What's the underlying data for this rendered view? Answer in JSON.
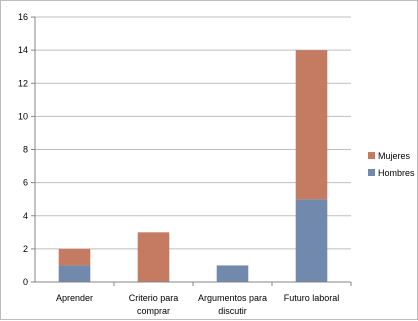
{
  "chart_data": {
    "type": "bar",
    "stacked": true,
    "categories": [
      [
        "Aprender"
      ],
      [
        "Criterio para",
        "comprar"
      ],
      [
        "Argumentos para",
        "discutir"
      ],
      [
        "Futuro laboral"
      ]
    ],
    "series": [
      {
        "name": "Hombres",
        "values": [
          1,
          0,
          1,
          5
        ],
        "color": "#7189ad"
      },
      {
        "name": "Mujeres",
        "values": [
          1,
          3,
          0,
          9
        ],
        "color": "#c57b61"
      }
    ],
    "ylim": [
      0,
      16
    ],
    "yticks": [
      "0",
      "2",
      "4",
      "6",
      "8",
      "10",
      "12",
      "14",
      "16"
    ],
    "grid": true,
    "legend_position": "right",
    "legend_order": [
      "Mujeres",
      "Hombres"
    ],
    "title": "",
    "xlabel": "",
    "ylabel": ""
  }
}
